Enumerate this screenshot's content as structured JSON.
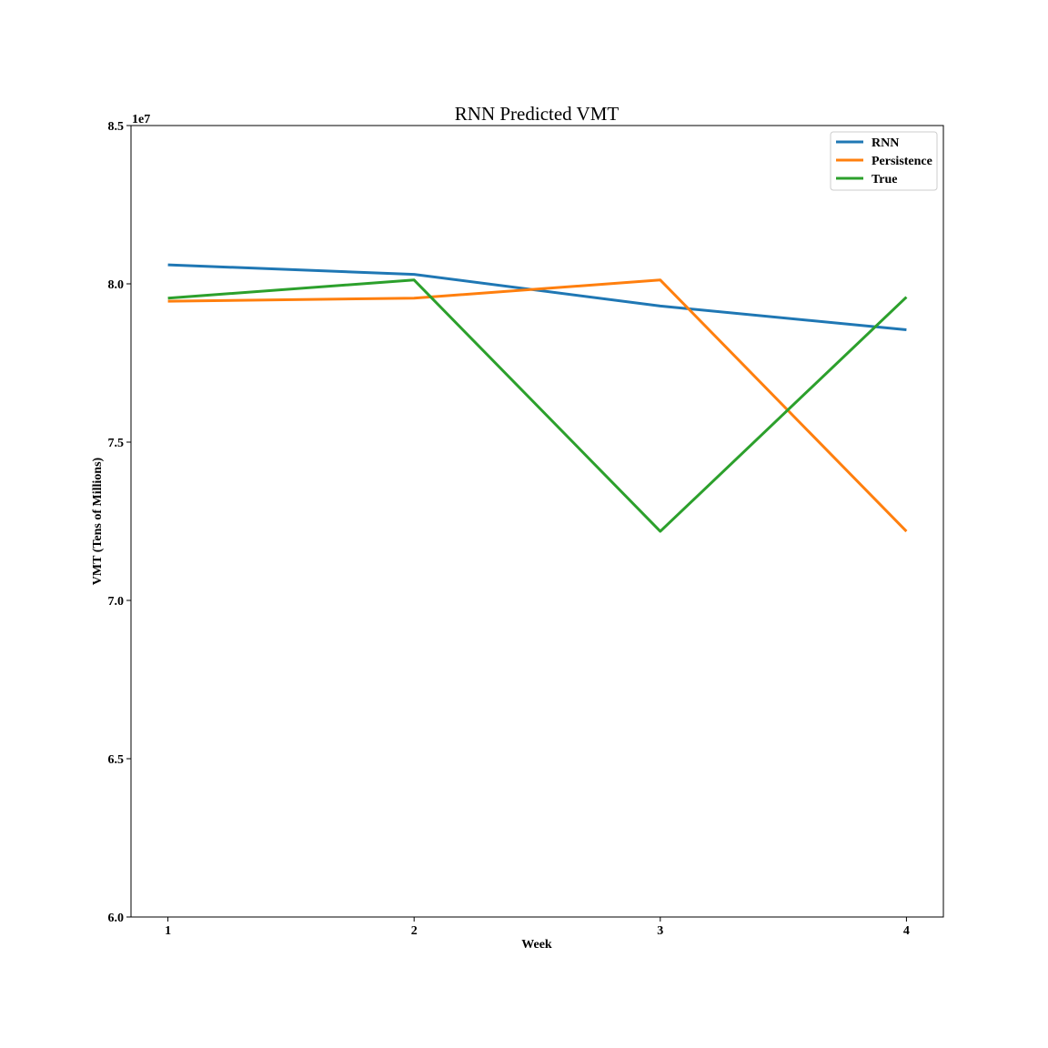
{
  "chart_data": {
    "type": "line",
    "title": "RNN Predicted VMT",
    "xlabel": "Week",
    "ylabel": "VMT (Tens of Millions)",
    "y_offset_text": "1e7",
    "x": [
      1,
      2,
      3,
      4
    ],
    "x_tick_labels": [
      "1",
      "2",
      "3",
      "4"
    ],
    "y_ticks": [
      6.0,
      6.5,
      7.0,
      7.5,
      8.0,
      8.5
    ],
    "y_tick_labels": [
      "6.0",
      "6.5",
      "7.0",
      "7.5",
      "8.0",
      "8.5"
    ],
    "xlim": [
      0.85,
      4.15
    ],
    "ylim": [
      6.0,
      8.5
    ],
    "grid": false,
    "legend_position": "top-right",
    "series": [
      {
        "name": "RNN",
        "color": "#1f77b4",
        "values": [
          8.06,
          8.03,
          7.93,
          7.855
        ]
      },
      {
        "name": "Persistence",
        "color": "#ff7f0e",
        "values": [
          7.945,
          7.955,
          8.012,
          7.218
        ]
      },
      {
        "name": "True",
        "color": "#2ca02c",
        "values": [
          7.955,
          8.012,
          7.218,
          7.958
        ]
      }
    ]
  }
}
